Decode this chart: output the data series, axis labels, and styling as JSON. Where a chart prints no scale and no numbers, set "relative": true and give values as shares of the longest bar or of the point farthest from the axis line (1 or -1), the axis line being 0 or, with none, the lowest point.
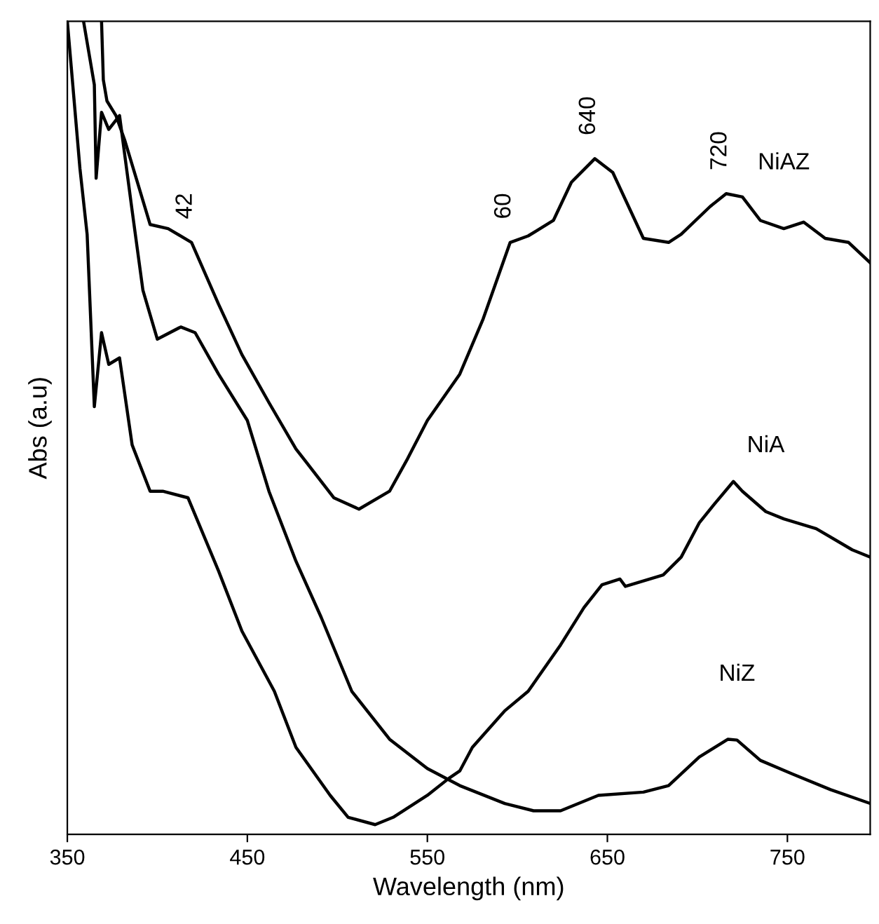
{
  "chart_data": {
    "type": "line",
    "relative": true,
    "xlabel": "Wavelength (nm)",
    "ylabel": "Abs (a.u)",
    "xlim": [
      350,
      796
    ],
    "xticks": [
      350,
      450,
      550,
      650,
      750
    ],
    "grid": false,
    "legend": false,
    "marker": "none",
    "line_style": "solid",
    "annotations": [
      {
        "text": "42",
        "x": 419,
        "y": 0.728
      },
      {
        "text": "60",
        "x": 596,
        "y": 0.728
      },
      {
        "text": "640",
        "x": 643,
        "y": 0.831
      },
      {
        "text": "720",
        "x": 716,
        "y": 0.788
      }
    ],
    "series": [
      {
        "name": "NiAZ",
        "color": "#000000",
        "x": [
          369,
          370,
          372,
          377,
          382,
          396,
          406,
          419,
          434,
          447,
          462,
          477,
          483,
          498,
          512,
          529,
          539,
          550,
          568,
          581,
          596,
          606,
          620,
          630,
          643,
          653,
          670,
          684,
          691,
          707,
          716,
          725,
          735,
          748,
          759,
          771,
          784,
          796
        ],
        "values": [
          1.0,
          0.928,
          0.902,
          0.884,
          0.853,
          0.75,
          0.745,
          0.728,
          0.652,
          0.59,
          0.531,
          0.474,
          0.457,
          0.414,
          0.4,
          0.422,
          0.462,
          0.509,
          0.566,
          0.634,
          0.728,
          0.736,
          0.755,
          0.802,
          0.831,
          0.814,
          0.733,
          0.728,
          0.738,
          0.772,
          0.788,
          0.784,
          0.755,
          0.745,
          0.753,
          0.733,
          0.728,
          0.703
        ]
      },
      {
        "name": "NiA",
        "color": "#000000",
        "x": [
          350,
          357,
          361,
          365,
          369,
          373,
          379,
          386,
          396,
          403,
          417,
          434,
          447,
          465,
          477,
          496,
          506,
          521,
          531,
          550,
          562,
          568,
          575,
          593,
          606,
          624,
          637,
          647,
          657,
          660,
          681,
          691,
          701,
          709,
          720,
          725,
          738,
          748,
          766,
          786,
          796
        ],
        "values": [
          1.0,
          0.819,
          0.738,
          0.526,
          0.617,
          0.578,
          0.586,
          0.479,
          0.422,
          0.422,
          0.414,
          0.324,
          0.25,
          0.176,
          0.107,
          0.048,
          0.021,
          0.012,
          0.021,
          0.048,
          0.069,
          0.078,
          0.107,
          0.152,
          0.176,
          0.233,
          0.279,
          0.307,
          0.314,
          0.305,
          0.319,
          0.341,
          0.383,
          0.405,
          0.434,
          0.422,
          0.397,
          0.388,
          0.376,
          0.35,
          0.341
        ]
      },
      {
        "name": "NiZ",
        "color": "#000000",
        "x": [
          359,
          365,
          366,
          369,
          373,
          379,
          386,
          392,
          400,
          413,
          421,
          434,
          450,
          462,
          477,
          491,
          508,
          529,
          550,
          568,
          593,
          609,
          624,
          645,
          670,
          684,
          701,
          717,
          722,
          735,
          753,
          774,
          796
        ],
        "values": [
          1.0,
          0.922,
          0.807,
          0.888,
          0.867,
          0.884,
          0.767,
          0.669,
          0.609,
          0.624,
          0.617,
          0.566,
          0.509,
          0.422,
          0.336,
          0.267,
          0.176,
          0.117,
          0.081,
          0.06,
          0.038,
          0.029,
          0.029,
          0.048,
          0.052,
          0.06,
          0.095,
          0.117,
          0.116,
          0.091,
          0.074,
          0.055,
          0.038
        ]
      }
    ]
  }
}
